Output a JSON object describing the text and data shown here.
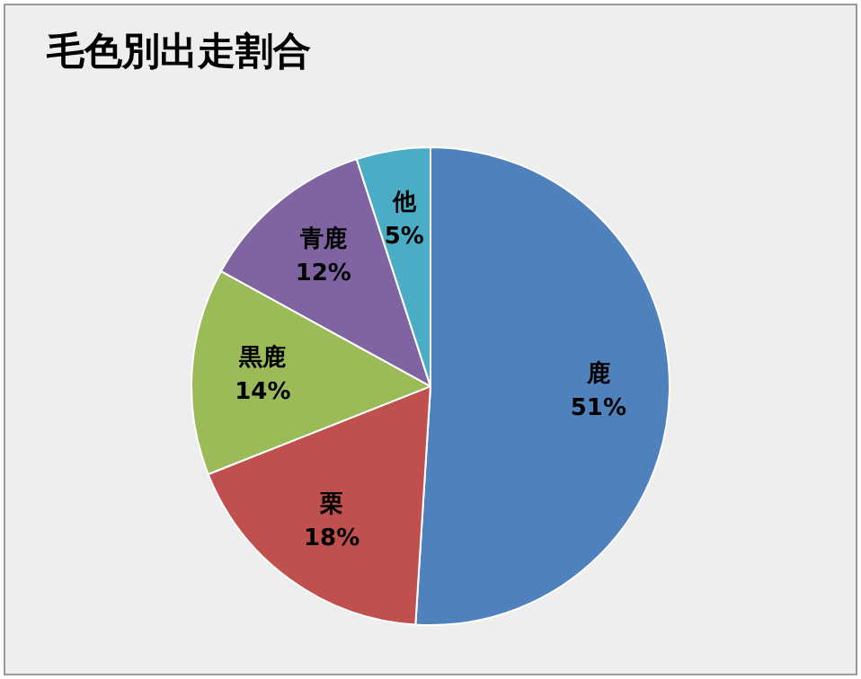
{
  "chart_data": {
    "type": "pie",
    "title": "毛色別出走割合",
    "categories": [
      "鹿",
      "栗",
      "黒鹿",
      "青鹿",
      "他"
    ],
    "values": [
      51,
      18,
      14,
      12,
      5
    ],
    "value_labels": [
      "51%",
      "18%",
      "14%",
      "12%",
      "5%"
    ],
    "colors": [
      "#4f81bd",
      "#c0504d",
      "#9bbb59",
      "#8064a2",
      "#4bacc6"
    ],
    "legend": false
  }
}
